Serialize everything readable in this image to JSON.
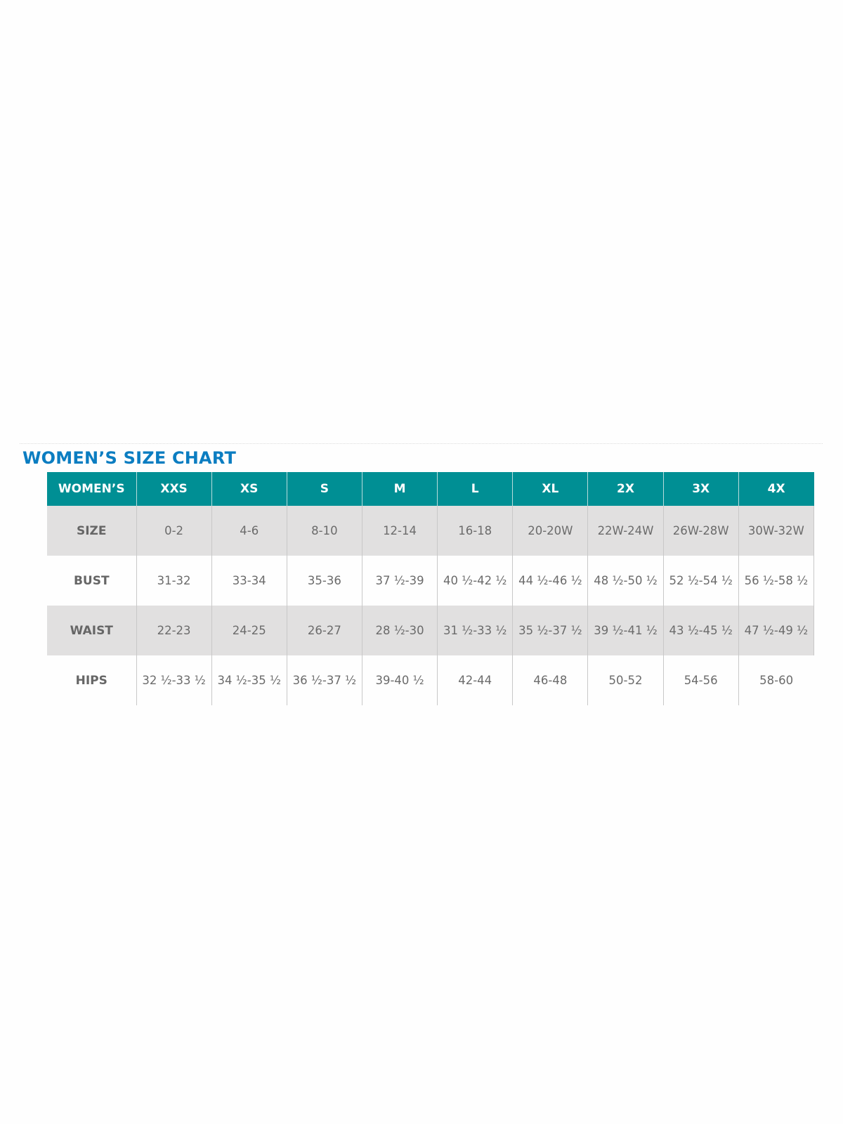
{
  "title": "WOMEN’S SIZE CHART",
  "colors": {
    "header_bg": "#008f94",
    "title": "#0b7dc1",
    "shaded_row": "#e1e0e0"
  },
  "table": {
    "headers": [
      "WOMEN’S",
      "XXS",
      "XS",
      "S",
      "M",
      "L",
      "XL",
      "2X",
      "3X",
      "4X"
    ],
    "rows": [
      {
        "label": "SIZE",
        "cells": [
          "0-2",
          "4-6",
          "8-10",
          "12-14",
          "16-18",
          "20-20W",
          "22W-24W",
          "26W-28W",
          "30W-32W"
        ]
      },
      {
        "label": "BUST",
        "cells": [
          "31-32",
          "33-34",
          "35-36",
          "37 ½-39",
          "40 ½-42 ½",
          "44 ½-46 ½",
          "48 ½-50 ½",
          "52 ½-54 ½",
          "56 ½-58 ½"
        ]
      },
      {
        "label": "WAIST",
        "cells": [
          "22-23",
          "24-25",
          "26-27",
          "28 ½-30",
          "31 ½-33 ½",
          "35 ½-37 ½",
          "39 ½-41 ½",
          "43 ½-45 ½",
          "47 ½-49 ½"
        ]
      },
      {
        "label": "HIPS",
        "cells": [
          "32 ½-33 ½",
          "34 ½-35 ½",
          "36 ½-37 ½",
          "39-40 ½",
          "42-44",
          "46-48",
          "50-52",
          "54-56",
          "58-60"
        ]
      }
    ]
  }
}
